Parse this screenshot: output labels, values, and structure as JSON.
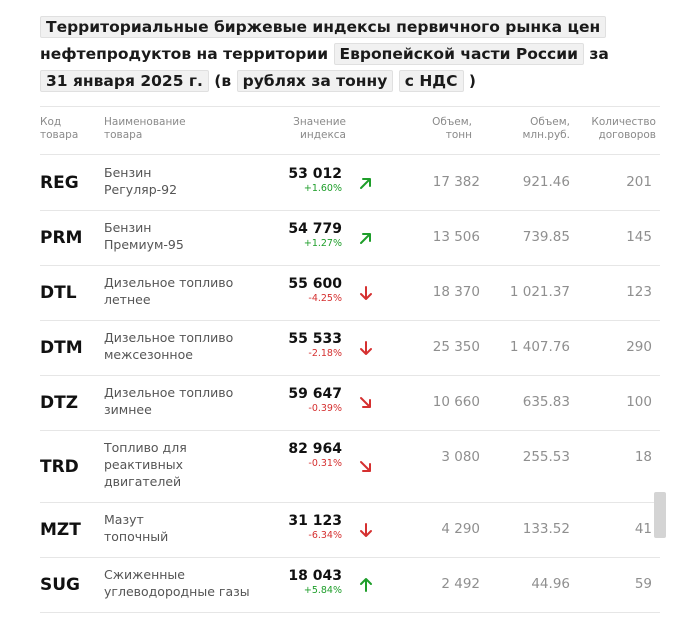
{
  "header": {
    "t1": "Территориальные биржевые индексы первичного рынка цен",
    "t2": "нефтепродуктов на территории",
    "region": "Европейской части России",
    "t3": "за",
    "date": "31 января 2025 г.",
    "t4": "(в",
    "unit": "рублях за тонну",
    "vat": "с НДС",
    "t5": ")"
  },
  "columns": {
    "code": [
      "Код",
      "товара"
    ],
    "name": [
      "Наименование",
      "товара"
    ],
    "index": [
      "Значение",
      "индекса"
    ],
    "volume_t": [
      "Объем,",
      "тонн"
    ],
    "volume_rub": [
      "Объем,",
      "млн.руб."
    ],
    "contracts": [
      "Количество",
      "договоров"
    ]
  },
  "rows": [
    {
      "code": "REG",
      "name": [
        "Бензин",
        "Регуляр-92"
      ],
      "value": "53 012",
      "change": "+1.60%",
      "dir": "up",
      "volume_t": "17 382",
      "volume_rub": "921.46",
      "contracts": "201"
    },
    {
      "code": "PRM",
      "name": [
        "Бензин",
        "Премиум-95"
      ],
      "value": "54 779",
      "change": "+1.27%",
      "dir": "up",
      "volume_t": "13 506",
      "volume_rub": "739.85",
      "contracts": "145"
    },
    {
      "code": "DTL",
      "name": [
        "Дизельное топливо",
        "летнее"
      ],
      "value": "55 600",
      "change": "-4.25%",
      "dir": "down",
      "volume_t": "18 370",
      "volume_rub": "1 021.37",
      "contracts": "123"
    },
    {
      "code": "DTM",
      "name": [
        "Дизельное топливо",
        "межсезонное"
      ],
      "value": "55 533",
      "change": "-2.18%",
      "dir": "down",
      "volume_t": "25 350",
      "volume_rub": "1 407.76",
      "contracts": "290"
    },
    {
      "code": "DTZ",
      "name": [
        "Дизельное топливо",
        "зимнее"
      ],
      "value": "59 647",
      "change": "-0.39%",
      "dir": "down-right",
      "volume_t": "10 660",
      "volume_rub": "635.83",
      "contracts": "100"
    },
    {
      "code": "TRD",
      "name": [
        "Топливо для",
        "реактивных",
        "двигателей"
      ],
      "value": "82 964",
      "change": "-0.31%",
      "dir": "down-right",
      "volume_t": "3 080",
      "volume_rub": "255.53",
      "contracts": "18"
    },
    {
      "code": "MZT",
      "name": [
        "Мазут",
        "топочный"
      ],
      "value": "31 123",
      "change": "-6.34%",
      "dir": "down",
      "volume_t": "4 290",
      "volume_rub": "133.52",
      "contracts": "41"
    },
    {
      "code": "SUG",
      "name": [
        "Сжиженные",
        "углеводородные газы"
      ],
      "value": "18 043",
      "change": "+5.84%",
      "dir": "up-straight",
      "volume_t": "2 492",
      "volume_rub": "44.96",
      "contracts": "59"
    }
  ],
  "colors": {
    "up": "#1e9e2a",
    "down": "#d53030"
  }
}
